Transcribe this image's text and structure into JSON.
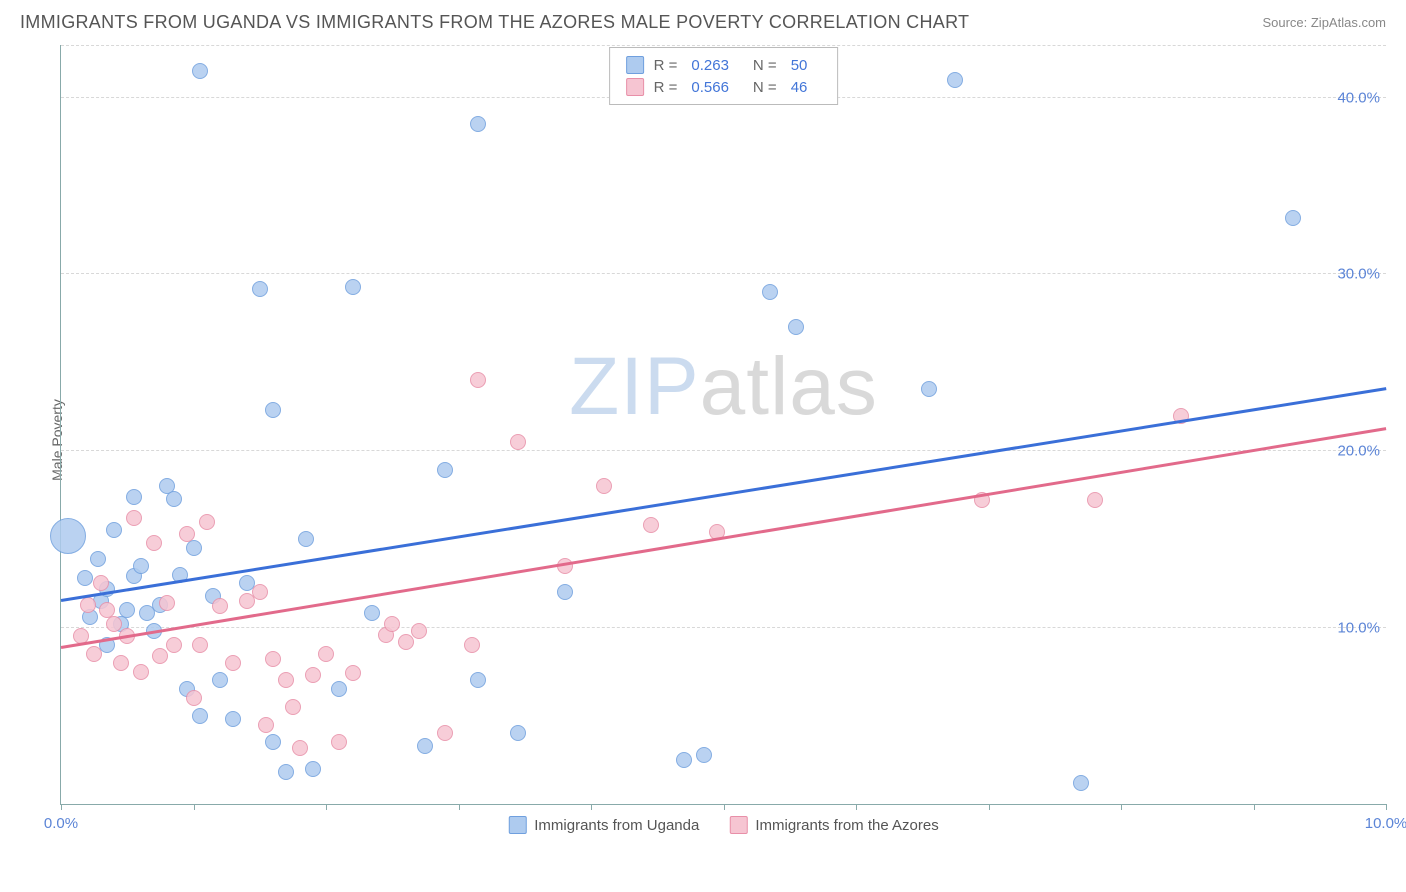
{
  "header": {
    "title": "IMMIGRANTS FROM UGANDA VS IMMIGRANTS FROM THE AZORES MALE POVERTY CORRELATION CHART",
    "source": "Source: ZipAtlas.com"
  },
  "chart": {
    "type": "scatter",
    "ylabel": "Male Poverty",
    "xlim": [
      0,
      10
    ],
    "ylim": [
      0,
      43
    ],
    "x_ticks": [
      0,
      1,
      2,
      3,
      4,
      5,
      6,
      7,
      8,
      9,
      10
    ],
    "x_tick_labels": {
      "0": "0.0%",
      "10": "10.0%"
    },
    "y_gridlines": [
      10,
      20,
      30,
      40
    ],
    "y_tick_labels": {
      "10": "10.0%",
      "20": "20.0%",
      "30": "30.0%",
      "40": "40.0%"
    },
    "background_color": "#ffffff",
    "grid_color": "#d8d8d8",
    "axis_color": "#88aaaa",
    "tick_label_color": "#5b84d6",
    "watermark": {
      "part1": "ZIP",
      "part2": "atlas"
    },
    "series": [
      {
        "name_key": "uganda",
        "label": "Immigrants from Uganda",
        "fill": "#aecbef",
        "stroke": "#6f9fde",
        "trend_color": "#3a6fd8",
        "r_label": "R =",
        "r_value": "0.263",
        "n_label": "N =",
        "n_value": "50",
        "trend": {
          "x1": 0,
          "y1": 11.5,
          "x2": 10,
          "y2": 23.5
        },
        "marker_radius": 8,
        "points": [
          {
            "x": 0.05,
            "y": 15.2,
            "r": 18
          },
          {
            "x": 1.05,
            "y": 41.5
          },
          {
            "x": 3.15,
            "y": 38.5
          },
          {
            "x": 6.75,
            "y": 41.0
          },
          {
            "x": 0.3,
            "y": 11.5
          },
          {
            "x": 0.35,
            "y": 12.2
          },
          {
            "x": 0.4,
            "y": 15.5
          },
          {
            "x": 0.5,
            "y": 11.0
          },
          {
            "x": 0.55,
            "y": 12.9
          },
          {
            "x": 0.6,
            "y": 13.5
          },
          {
            "x": 0.55,
            "y": 17.4
          },
          {
            "x": 0.65,
            "y": 10.8
          },
          {
            "x": 0.75,
            "y": 11.3
          },
          {
            "x": 0.8,
            "y": 18.0
          },
          {
            "x": 0.85,
            "y": 17.3
          },
          {
            "x": 0.95,
            "y": 6.5
          },
          {
            "x": 1.0,
            "y": 14.5
          },
          {
            "x": 1.05,
            "y": 5.0
          },
          {
            "x": 1.2,
            "y": 7.0
          },
          {
            "x": 1.3,
            "y": 4.8
          },
          {
            "x": 1.5,
            "y": 29.2
          },
          {
            "x": 1.6,
            "y": 22.3
          },
          {
            "x": 1.7,
            "y": 1.8
          },
          {
            "x": 1.85,
            "y": 15.0
          },
          {
            "x": 1.9,
            "y": 2.0
          },
          {
            "x": 2.1,
            "y": 6.5
          },
          {
            "x": 2.2,
            "y": 29.3
          },
          {
            "x": 2.35,
            "y": 10.8
          },
          {
            "x": 2.75,
            "y": 3.3
          },
          {
            "x": 2.9,
            "y": 18.9
          },
          {
            "x": 3.15,
            "y": 7.0
          },
          {
            "x": 3.45,
            "y": 4.0
          },
          {
            "x": 3.8,
            "y": 12.0
          },
          {
            "x": 4.85,
            "y": 2.8
          },
          {
            "x": 5.35,
            "y": 29.0
          },
          {
            "x": 5.55,
            "y": 27.0
          },
          {
            "x": 6.55,
            "y": 23.5
          },
          {
            "x": 7.7,
            "y": 1.2
          },
          {
            "x": 9.3,
            "y": 33.2
          },
          {
            "x": 0.18,
            "y": 12.8
          },
          {
            "x": 0.22,
            "y": 10.6
          },
          {
            "x": 0.28,
            "y": 13.9
          },
          {
            "x": 0.9,
            "y": 13.0
          },
          {
            "x": 1.4,
            "y": 12.5
          },
          {
            "x": 1.6,
            "y": 3.5
          },
          {
            "x": 0.7,
            "y": 9.8
          },
          {
            "x": 0.35,
            "y": 9.0
          },
          {
            "x": 4.7,
            "y": 2.5
          },
          {
            "x": 0.45,
            "y": 10.2
          },
          {
            "x": 1.15,
            "y": 11.8
          }
        ]
      },
      {
        "name_key": "azores",
        "label": "Immigrants from the Azores",
        "fill": "#f6c5d2",
        "stroke": "#e88fa8",
        "trend_color": "#e26a8b",
        "r_label": "R =",
        "r_value": "0.566",
        "n_label": "N =",
        "n_value": "46",
        "trend": {
          "x1": 0,
          "y1": 8.8,
          "x2": 10,
          "y2": 21.2
        },
        "marker_radius": 8,
        "points": [
          {
            "x": 0.15,
            "y": 9.5
          },
          {
            "x": 0.2,
            "y": 11.3
          },
          {
            "x": 0.25,
            "y": 8.5
          },
          {
            "x": 0.35,
            "y": 11.0
          },
          {
            "x": 0.4,
            "y": 10.2
          },
          {
            "x": 0.45,
            "y": 8.0
          },
          {
            "x": 0.5,
            "y": 9.5
          },
          {
            "x": 0.55,
            "y": 16.2
          },
          {
            "x": 0.6,
            "y": 7.5
          },
          {
            "x": 0.7,
            "y": 14.8
          },
          {
            "x": 0.75,
            "y": 8.4
          },
          {
            "x": 0.8,
            "y": 11.4
          },
          {
            "x": 0.85,
            "y": 9.0
          },
          {
            "x": 0.95,
            "y": 15.3
          },
          {
            "x": 1.0,
            "y": 6.0
          },
          {
            "x": 1.1,
            "y": 16.0
          },
          {
            "x": 1.2,
            "y": 11.2
          },
          {
            "x": 1.3,
            "y": 8.0
          },
          {
            "x": 1.4,
            "y": 11.5
          },
          {
            "x": 1.5,
            "y": 12.0
          },
          {
            "x": 1.55,
            "y": 4.5
          },
          {
            "x": 1.6,
            "y": 8.2
          },
          {
            "x": 1.7,
            "y": 7.0
          },
          {
            "x": 1.8,
            "y": 3.2
          },
          {
            "x": 1.9,
            "y": 7.3
          },
          {
            "x": 2.0,
            "y": 8.5
          },
          {
            "x": 2.1,
            "y": 3.5
          },
          {
            "x": 2.2,
            "y": 7.4
          },
          {
            "x": 2.45,
            "y": 9.6
          },
          {
            "x": 2.5,
            "y": 10.2
          },
          {
            "x": 2.6,
            "y": 9.2
          },
          {
            "x": 2.7,
            "y": 9.8
          },
          {
            "x": 2.9,
            "y": 4.0
          },
          {
            "x": 3.1,
            "y": 9.0
          },
          {
            "x": 3.15,
            "y": 24.0
          },
          {
            "x": 3.45,
            "y": 20.5
          },
          {
            "x": 3.8,
            "y": 13.5
          },
          {
            "x": 4.1,
            "y": 18.0
          },
          {
            "x": 4.45,
            "y": 15.8
          },
          {
            "x": 4.95,
            "y": 15.4
          },
          {
            "x": 6.95,
            "y": 17.2
          },
          {
            "x": 7.8,
            "y": 17.2
          },
          {
            "x": 8.45,
            "y": 22.0
          },
          {
            "x": 0.3,
            "y": 12.5
          },
          {
            "x": 1.05,
            "y": 9.0
          },
          {
            "x": 1.75,
            "y": 5.5
          }
        ]
      }
    ]
  }
}
